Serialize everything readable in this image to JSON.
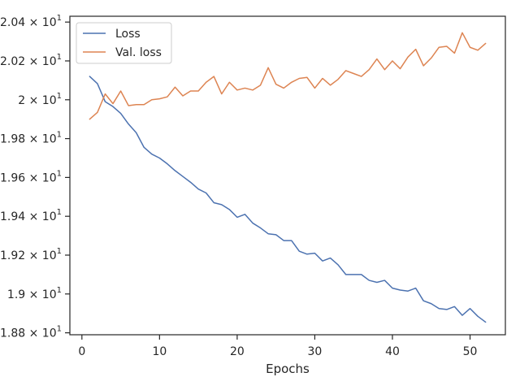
{
  "chart_data": {
    "type": "line",
    "title": "",
    "xlabel": "Epochs",
    "ylabel": "",
    "xlim": [
      -1.55,
      54.55
    ],
    "ylim": [
      18.79,
      20.43
    ],
    "x_ticks": [
      0,
      10,
      20,
      30,
      40,
      50
    ],
    "x_tick_labels": [
      "0",
      "10",
      "20",
      "30",
      "40",
      "50"
    ],
    "y_ticks": [
      18.8,
      19.0,
      19.2,
      19.4,
      19.6,
      19.8,
      20.0,
      20.2,
      20.4
    ],
    "y_tick_labels": [
      {
        "mantissa": "1.88",
        "exponent": "1"
      },
      {
        "mantissa": "1.9",
        "exponent": "1"
      },
      {
        "mantissa": "1.92",
        "exponent": "1"
      },
      {
        "mantissa": "1.94",
        "exponent": "1"
      },
      {
        "mantissa": "1.96",
        "exponent": "1"
      },
      {
        "mantissa": "1.98",
        "exponent": "1"
      },
      {
        "mantissa": "2",
        "exponent": "1"
      },
      {
        "mantissa": "2.02",
        "exponent": "1"
      },
      {
        "mantissa": "2.04",
        "exponent": "1"
      }
    ],
    "grid": false,
    "legend_position": "top-left",
    "x": [
      1,
      2,
      3,
      4,
      5,
      6,
      7,
      8,
      9,
      10,
      11,
      12,
      13,
      14,
      15,
      16,
      17,
      18,
      19,
      20,
      21,
      22,
      23,
      24,
      25,
      26,
      27,
      28,
      29,
      30,
      31,
      32,
      33,
      34,
      35,
      36,
      37,
      38,
      39,
      40,
      41,
      42,
      43,
      44,
      45,
      46,
      47,
      48,
      49,
      50,
      51,
      52
    ],
    "series": [
      {
        "name": "Loss",
        "color": "#4c72b0",
        "values": [
          20.12,
          20.083,
          19.99,
          19.965,
          19.93,
          19.875,
          19.83,
          19.755,
          19.72,
          19.7,
          19.67,
          19.635,
          19.605,
          19.575,
          19.54,
          19.52,
          19.47,
          19.46,
          19.435,
          19.395,
          19.41,
          19.365,
          19.34,
          19.31,
          19.305,
          19.275,
          19.275,
          19.22,
          19.205,
          19.21,
          19.17,
          19.185,
          19.15,
          19.1,
          19.1,
          19.1,
          19.07,
          19.06,
          19.07,
          19.03,
          19.02,
          19.015,
          19.03,
          18.965,
          18.95,
          18.925,
          18.92,
          18.935,
          18.89,
          18.925,
          18.885,
          18.855
        ]
      },
      {
        "name": "Val. loss",
        "color": "#dd8452",
        "values": [
          19.9,
          19.935,
          20.03,
          19.98,
          20.045,
          19.97,
          19.975,
          19.975,
          20.0,
          20.005,
          20.015,
          20.065,
          20.02,
          20.045,
          20.045,
          20.09,
          20.12,
          20.03,
          20.09,
          20.05,
          20.06,
          20.05,
          20.075,
          20.165,
          20.08,
          20.06,
          20.09,
          20.11,
          20.115,
          20.06,
          20.11,
          20.075,
          20.105,
          20.15,
          20.135,
          20.12,
          20.155,
          20.21,
          20.155,
          20.2,
          20.16,
          20.22,
          20.26,
          20.175,
          20.215,
          20.27,
          20.275,
          20.24,
          20.345,
          20.27,
          20.255,
          20.29
        ]
      }
    ]
  }
}
